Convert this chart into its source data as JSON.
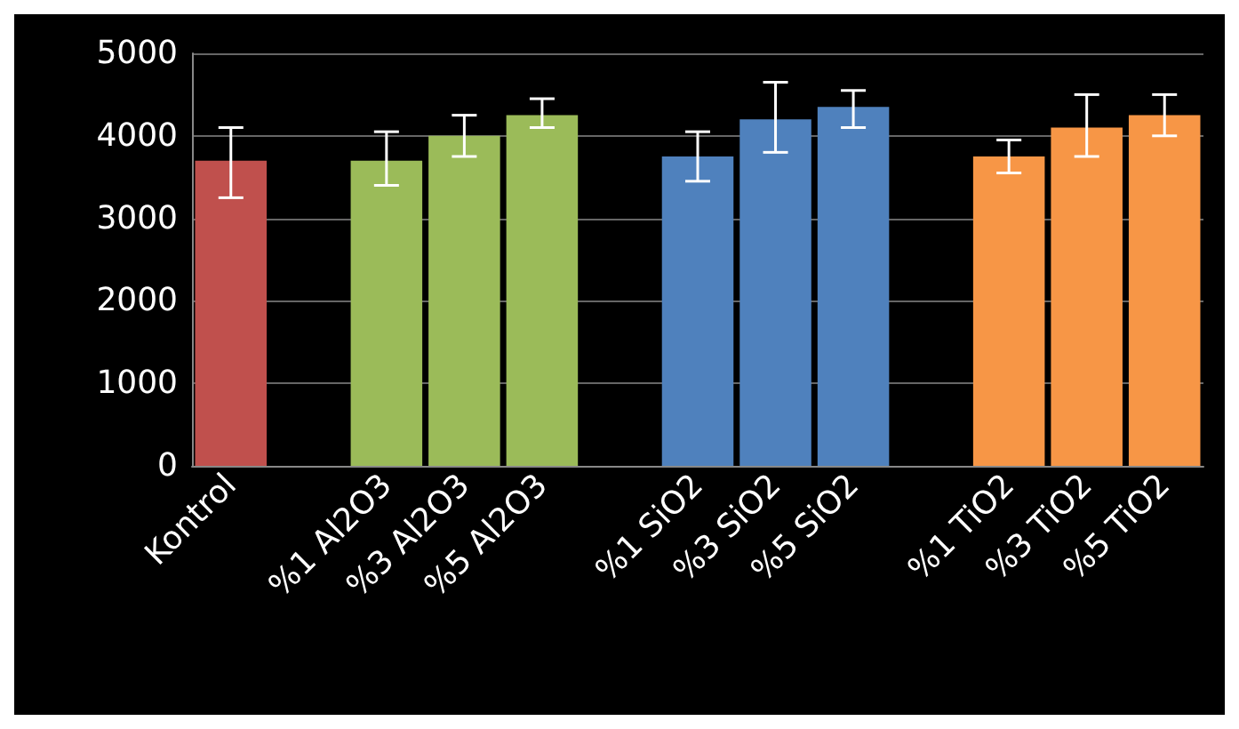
{
  "chart_data": {
    "type": "bar",
    "categories": [
      "Kontrol",
      null,
      "%1 Al2O3",
      "%3 Al2O3",
      "%5 Al2O3",
      null,
      "%1 SiO2",
      "%3 SiO2",
      "%5 SiO2",
      null,
      "%1 TiO2",
      "%3 TiO2",
      "%5 TiO2"
    ],
    "values": [
      3700,
      null,
      3700,
      4000,
      4250,
      null,
      3750,
      4200,
      4350,
      null,
      3750,
      4100,
      4250
    ],
    "colors": [
      "#c0504d",
      null,
      "#9bbb59",
      "#9bbb59",
      "#9bbb59",
      null,
      "#4f81bd",
      "#4f81bd",
      "#4f81bd",
      null,
      "#f79646",
      "#f79646",
      "#f79646"
    ],
    "errors": [
      [
        3250,
        4100
      ],
      null,
      [
        3400,
        4050
      ],
      [
        3750,
        4250
      ],
      [
        4100,
        4450
      ],
      null,
      [
        3450,
        4050
      ],
      [
        3800,
        4650
      ],
      [
        4100,
        4550
      ],
      null,
      [
        3550,
        3950
      ],
      [
        3750,
        4500
      ],
      [
        4000,
        4500
      ]
    ],
    "ylim": [
      0,
      5000
    ],
    "yticks": [
      0,
      1000,
      2000,
      3000,
      4000,
      5000
    ],
    "grid": "y"
  }
}
